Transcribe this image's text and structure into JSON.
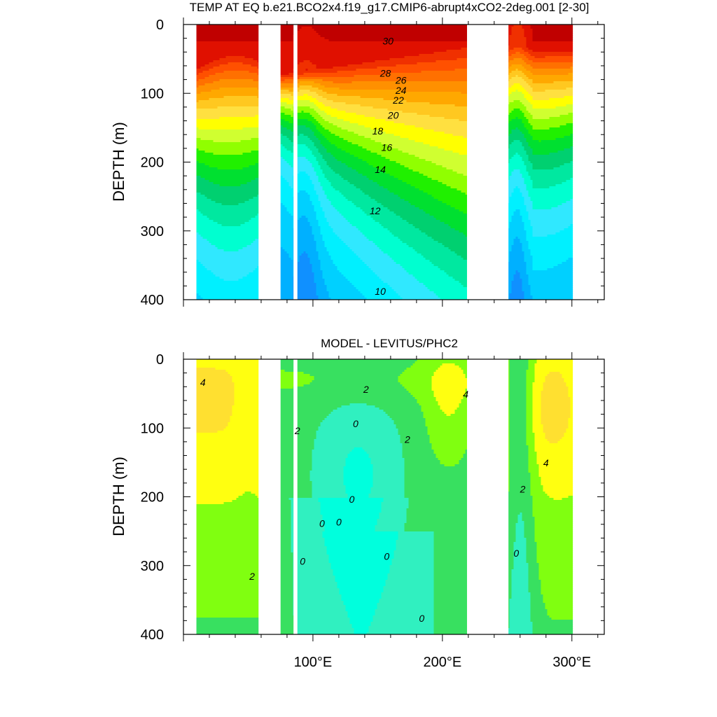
{
  "chart_data": [
    {
      "type": "heatmap",
      "title": "TEMP AT EQ b.e21.BCO2x4.f19_g17.CMIP6-abrupt4xCO2-2deg.001 [2-30]",
      "xlabel": "",
      "ylabel": "DEPTH (m)",
      "xlim": [
        0,
        325
      ],
      "ylim": [
        400,
        0
      ],
      "yticks": [
        "0",
        "100",
        "200",
        "300",
        "400"
      ],
      "xticks": [],
      "data_x_range": [
        10,
        300
      ],
      "land_gaps_lon": [
        [
          58,
          75
        ],
        [
          85,
          88
        ],
        [
          219,
          251
        ]
      ],
      "contour_labels": [
        {
          "text": "30",
          "lon": 158,
          "depth": 25
        },
        {
          "text": "28",
          "lon": 156,
          "depth": 72
        },
        {
          "text": "26",
          "lon": 168,
          "depth": 82
        },
        {
          "text": "24",
          "lon": 168,
          "depth": 97
        },
        {
          "text": "22",
          "lon": 166,
          "depth": 111
        },
        {
          "text": "20",
          "lon": 162,
          "depth": 133
        },
        {
          "text": "18",
          "lon": 150,
          "depth": 156
        },
        {
          "text": "16",
          "lon": 157,
          "depth": 180
        },
        {
          "text": "14",
          "lon": 152,
          "depth": 212
        },
        {
          "text": "12",
          "lon": 148,
          "depth": 272
        },
        {
          "text": "10",
          "lon": 152,
          "depth": 389
        }
      ],
      "levels": [
        {
          "level": 2,
          "color": "#1010c8"
        },
        {
          "level": 4,
          "color": "#1030e0"
        },
        {
          "level": 6,
          "color": "#0050f0"
        },
        {
          "level": 8,
          "color": "#0a6ef5"
        },
        {
          "level": 9,
          "color": "#1090ff"
        },
        {
          "level": 10,
          "color": "#00b0ff"
        },
        {
          "level": 11,
          "color": "#00d0ff"
        },
        {
          "level": 12,
          "color": "#00f0ff"
        },
        {
          "level": 13,
          "color": "#30e8ff"
        },
        {
          "level": 14,
          "color": "#00ffd0"
        },
        {
          "level": 15,
          "color": "#00e8a0"
        },
        {
          "level": 16,
          "color": "#00d070"
        },
        {
          "level": 17,
          "color": "#00e030"
        },
        {
          "level": 18,
          "color": "#20f000"
        },
        {
          "level": 19,
          "color": "#90ff00"
        },
        {
          "level": 20,
          "color": "#d0ff30"
        },
        {
          "level": 21,
          "color": "#ffff00"
        },
        {
          "level": 22,
          "color": "#ffe040"
        },
        {
          "level": 23,
          "color": "#ffc820"
        },
        {
          "level": 24,
          "color": "#ffa800"
        },
        {
          "level": 25,
          "color": "#ff9000"
        },
        {
          "level": 26,
          "color": "#ff7000"
        },
        {
          "level": 27,
          "color": "#ff5000"
        },
        {
          "level": 28,
          "color": "#f03000"
        },
        {
          "level": 29,
          "color": "#e01000"
        },
        {
          "level": 30,
          "color": "#c00000"
        }
      ]
    },
    {
      "type": "heatmap",
      "title": "MODEL - LEVITUS/PHC2",
      "xlabel": "",
      "ylabel": "DEPTH (m)",
      "xlim": [
        0,
        325
      ],
      "ylim": [
        400,
        0
      ],
      "yticks": [
        "0",
        "100",
        "200",
        "300",
        "400"
      ],
      "xticks": [
        "100°E",
        "200°E",
        "300°E"
      ],
      "xtick_values": [
        100,
        200,
        300
      ],
      "data_x_range": [
        10,
        300
      ],
      "land_gaps_lon": [
        [
          58,
          75
        ],
        [
          85,
          88
        ],
        [
          219,
          251
        ]
      ],
      "contour_labels": [
        {
          "text": "4",
          "lon": 15,
          "depth": 35
        },
        {
          "text": "2",
          "lon": 141,
          "depth": 45
        },
        {
          "text": "4",
          "lon": 218,
          "depth": 52
        },
        {
          "text": "0",
          "lon": 133,
          "depth": 95
        },
        {
          "text": "2",
          "lon": 88,
          "depth": 105
        },
        {
          "text": "2",
          "lon": 173,
          "depth": 118
        },
        {
          "text": "4",
          "lon": 280,
          "depth": 152
        },
        {
          "text": "2",
          "lon": 262,
          "depth": 190
        },
        {
          "text": "0",
          "lon": 130,
          "depth": 205
        },
        {
          "text": "0",
          "lon": 107,
          "depth": 240
        },
        {
          "text": "0",
          "lon": 120,
          "depth": 238
        },
        {
          "text": "0",
          "lon": 257,
          "depth": 283
        },
        {
          "text": "0",
          "lon": 157,
          "depth": 288
        },
        {
          "text": "0",
          "lon": 92,
          "depth": 295
        },
        {
          "text": "2",
          "lon": 53,
          "depth": 317
        },
        {
          "text": "0",
          "lon": 184,
          "depth": 378
        }
      ],
      "levels": [
        {
          "level": -1,
          "color": "#00ffdd"
        },
        {
          "level": 0,
          "color": "#30f0c0"
        },
        {
          "level": 1,
          "color": "#38e060"
        },
        {
          "level": 2,
          "color": "#80ff10"
        },
        {
          "level": 3,
          "color": "#ffff10"
        },
        {
          "level": 4,
          "color": "#ffe030"
        },
        {
          "level": 5,
          "color": "#ffb040"
        }
      ]
    }
  ]
}
